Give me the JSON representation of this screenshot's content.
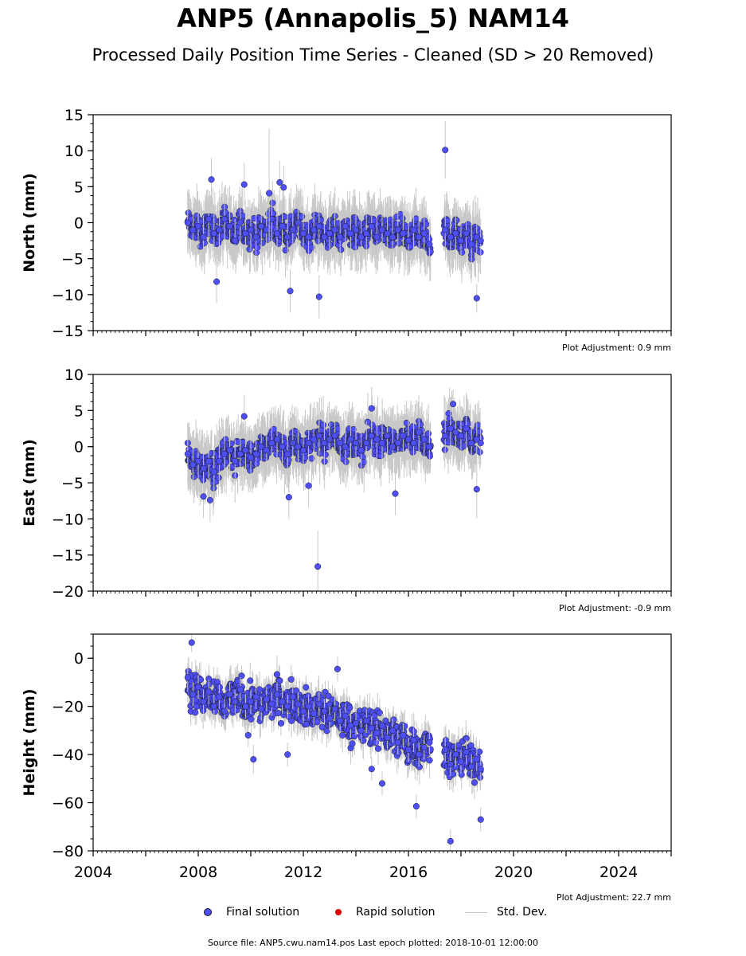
{
  "title": "ANP5 (Annapolis_5) NAM14",
  "subtitle": "Processed Daily Position Time Series - Cleaned (SD > 20 Removed)",
  "source_note": "Source file: ANP5.cwu.nam14.pos  Last epoch plotted: 2018-10-01 12:00:00",
  "legend": {
    "final": "Final solution",
    "rapid": "Rapid solution",
    "std": "Std. Dev."
  },
  "colors": {
    "final": "#4f4ff7",
    "rapid": "#e00000",
    "std": "#c8c8c8",
    "marker_edge": "#1a1a1a"
  },
  "chart_data": [
    {
      "type": "scatter",
      "ylabel": "North (mm)",
      "ylim": [
        -15,
        15
      ],
      "yticks": [
        -15,
        -10,
        -5,
        0,
        5,
        10,
        15
      ],
      "ytick_labels": [
        "−15",
        "−10",
        "−5",
        "0",
        "5",
        "10",
        "15"
      ],
      "xlim": [
        2004,
        2026
      ],
      "adjustment": "Plot Adjustment: 0.9 mm",
      "series": [
        {
          "style": "final",
          "x": [
            2007.6,
            2007.8,
            2008.0,
            2008.2,
            2008.4,
            2008.6,
            2008.8,
            2009.0,
            2009.2,
            2009.4,
            2009.6,
            2009.8,
            2010.0,
            2010.2,
            2010.4,
            2010.6,
            2010.8,
            2011.0,
            2011.2,
            2011.4,
            2011.6,
            2011.8,
            2012.0,
            2012.2,
            2012.4,
            2012.6,
            2012.8,
            2013.0,
            2013.2,
            2013.4,
            2013.6,
            2013.8,
            2014.0,
            2014.2,
            2014.4,
            2014.6,
            2014.8,
            2015.0,
            2015.2,
            2015.4,
            2015.6,
            2015.8,
            2016.0,
            2016.2,
            2016.4,
            2016.6,
            2016.8,
            2017.4,
            2017.6,
            2017.8,
            2018.0,
            2018.2,
            2018.4,
            2018.6,
            2018.75
          ],
          "y": [
            0.0,
            -1.0,
            -0.5,
            -2.0,
            0.5,
            -1.5,
            -1.0,
            0.5,
            -0.5,
            -2.5,
            0.0,
            -1.5,
            -1.0,
            -2.0,
            -0.5,
            -1.0,
            0.5,
            -1.5,
            -0.5,
            -2.0,
            -1.0,
            0.0,
            -1.5,
            -2.0,
            -1.0,
            -0.5,
            -2.0,
            -1.5,
            -1.0,
            -2.0,
            -0.5,
            -1.5,
            -1.0,
            -2.0,
            -1.5,
            -0.5,
            -2.0,
            -1.0,
            -1.5,
            -2.0,
            -1.0,
            -1.5,
            -2.5,
            -1.0,
            -2.0,
            -1.5,
            -3.0,
            -1.0,
            -2.0,
            -1.5,
            -2.5,
            -1.5,
            -3.0,
            -2.0,
            -2.5
          ],
          "err": [
            4,
            3,
            3,
            3,
            3,
            4,
            3,
            3,
            4,
            3,
            3,
            3,
            3,
            4,
            3,
            3,
            4,
            3,
            3,
            3,
            3,
            3,
            3,
            3,
            3,
            3,
            3,
            3,
            3,
            3,
            3,
            3,
            3,
            3,
            3,
            3,
            3,
            3,
            3,
            3,
            3,
            3,
            3,
            3,
            3,
            3,
            3,
            3,
            3,
            3,
            3,
            3,
            3,
            3,
            3
          ]
        },
        {
          "style": "final-outliers",
          "x": [
            2008.5,
            2009.75,
            2011.5,
            2011.1,
            2011.25,
            2012.6,
            2017.4,
            2018.6,
            2010.7,
            2008.7
          ],
          "y": [
            6.0,
            5.3,
            -9.5,
            5.6,
            4.9,
            -10.3,
            10.1,
            -10.5,
            4.1,
            -8.2
          ],
          "err": [
            3,
            3,
            3,
            3,
            3,
            3,
            4,
            2,
            9,
            3
          ]
        }
      ]
    },
    {
      "type": "scatter",
      "ylabel": "East (mm)",
      "ylim": [
        -20,
        10
      ],
      "yticks": [
        -20,
        -15,
        -10,
        -5,
        0,
        5,
        10
      ],
      "ytick_labels": [
        "−20",
        "−15",
        "−10",
        "−5",
        "0",
        "5",
        "10"
      ],
      "xlim": [
        2004,
        2026
      ],
      "adjustment": "Plot Adjustment: -0.9 mm",
      "series": [
        {
          "style": "final",
          "x": [
            2007.6,
            2007.8,
            2008.0,
            2008.2,
            2008.4,
            2008.6,
            2008.8,
            2009.0,
            2009.2,
            2009.4,
            2009.6,
            2009.8,
            2010.0,
            2010.2,
            2010.4,
            2010.6,
            2010.8,
            2011.0,
            2011.2,
            2011.4,
            2011.6,
            2011.8,
            2012.0,
            2012.2,
            2012.4,
            2012.6,
            2012.8,
            2013.0,
            2013.2,
            2013.4,
            2013.6,
            2013.8,
            2014.0,
            2014.2,
            2014.4,
            2014.6,
            2014.8,
            2015.0,
            2015.2,
            2015.4,
            2015.6,
            2015.8,
            2016.0,
            2016.2,
            2016.4,
            2016.6,
            2016.8,
            2017.4,
            2017.6,
            2017.8,
            2018.0,
            2018.2,
            2018.4,
            2018.6,
            2018.75
          ],
          "y": [
            -1.0,
            -2.5,
            -2.0,
            -3.0,
            -2.0,
            -3.5,
            -2.0,
            -1.0,
            -0.5,
            -2.0,
            -1.0,
            -0.5,
            -1.5,
            -1.0,
            0.0,
            -0.5,
            0.5,
            1.0,
            0.0,
            -1.0,
            0.5,
            0.0,
            -0.5,
            0.5,
            1.0,
            1.5,
            0.5,
            1.0,
            1.5,
            0.5,
            0.0,
            1.0,
            0.5,
            -0.5,
            0.5,
            1.5,
            1.0,
            0.5,
            1.5,
            0.0,
            0.5,
            1.5,
            1.0,
            0.5,
            2.0,
            1.0,
            0.0,
            1.5,
            2.5,
            2.0,
            1.5,
            2.5,
            0.5,
            1.0,
            0.5
          ],
          "err": [
            4,
            3,
            3,
            3,
            3,
            3,
            3,
            3,
            3,
            3,
            3,
            3,
            3,
            3,
            3,
            3,
            3,
            3,
            3,
            3,
            3,
            3,
            3,
            3,
            3,
            3,
            3,
            3,
            3,
            3,
            3,
            3,
            3,
            3,
            3,
            3,
            3,
            3,
            3,
            3,
            3,
            3,
            3,
            3,
            3,
            3,
            3,
            3,
            3,
            3,
            3,
            3,
            3,
            3,
            3
          ]
        },
        {
          "style": "final-outliers",
          "x": [
            2012.55,
            2011.45,
            2008.2,
            2008.45,
            2015.5,
            2012.2,
            2014.6,
            2018.6,
            2017.7,
            2009.75
          ],
          "y": [
            -16.6,
            -7.0,
            -6.9,
            -7.4,
            -6.5,
            -5.4,
            5.3,
            -5.9,
            5.9,
            4.2
          ],
          "err": [
            5,
            3,
            3,
            3,
            3,
            3,
            3,
            4,
            2,
            3
          ]
        }
      ]
    },
    {
      "type": "scatter",
      "ylabel": "Height (mm)",
      "ylim": [
        -80,
        10
      ],
      "yticks": [
        -80,
        -60,
        -40,
        -20,
        0
      ],
      "ytick_labels": [
        "−80",
        "−60",
        "−40",
        "−20",
        "0"
      ],
      "xlim": [
        2004,
        2026
      ],
      "xticks": [
        2004,
        2008,
        2012,
        2016,
        2020,
        2024
      ],
      "xtick_labels": [
        "2004",
        "2008",
        "2012",
        "2016",
        "2020",
        "2024"
      ],
      "adjustment": "Plot Adjustment: 22.7 mm",
      "series": [
        {
          "style": "final",
          "x": [
            2007.6,
            2007.8,
            2008.0,
            2008.2,
            2008.4,
            2008.6,
            2008.8,
            2009.0,
            2009.2,
            2009.4,
            2009.6,
            2009.8,
            2010.0,
            2010.2,
            2010.4,
            2010.6,
            2010.8,
            2011.0,
            2011.2,
            2011.4,
            2011.6,
            2011.8,
            2012.0,
            2012.2,
            2012.4,
            2012.6,
            2012.8,
            2013.0,
            2013.2,
            2013.4,
            2013.6,
            2013.8,
            2014.0,
            2014.2,
            2014.4,
            2014.6,
            2014.8,
            2015.0,
            2015.2,
            2015.4,
            2015.6,
            2015.8,
            2016.0,
            2016.2,
            2016.4,
            2016.6,
            2016.8,
            2017.4,
            2017.6,
            2017.8,
            2018.0,
            2018.2,
            2018.4,
            2018.6,
            2018.75
          ],
          "y": [
            -8,
            -15,
            -12,
            -18,
            -14,
            -20,
            -16,
            -22,
            -15,
            -18,
            -13,
            -20,
            -18,
            -16,
            -21,
            -17,
            -19,
            -15,
            -18,
            -20,
            -16,
            -19,
            -22,
            -20,
            -23,
            -19,
            -22,
            -25,
            -21,
            -26,
            -24,
            -28,
            -27,
            -30,
            -26,
            -29,
            -31,
            -28,
            -33,
            -30,
            -35,
            -32,
            -38,
            -34,
            -40,
            -37,
            -35,
            -38,
            -44,
            -40,
            -43,
            -39,
            -45,
            -42,
            -46
          ],
          "err": [
            6,
            5,
            5,
            5,
            5,
            5,
            5,
            5,
            5,
            5,
            5,
            5,
            5,
            5,
            5,
            5,
            5,
            5,
            5,
            5,
            5,
            5,
            5,
            5,
            5,
            5,
            5,
            5,
            5,
            5,
            5,
            5,
            5,
            5,
            5,
            5,
            5,
            5,
            5,
            5,
            5,
            5,
            5,
            5,
            5,
            5,
            5,
            5,
            5,
            5,
            5,
            5,
            5,
            5,
            5
          ]
        },
        {
          "style": "final-outliers",
          "x": [
            2007.75,
            2010.1,
            2017.6,
            2016.3,
            2018.75,
            2015.0,
            2011.4,
            2013.3,
            2009.9,
            2014.6
          ],
          "y": [
            6.5,
            -42.0,
            -76.0,
            -61.5,
            -67.0,
            -52.0,
            -40.0,
            -4.5,
            -32.0,
            -46.0
          ],
          "err": [
            4,
            6,
            5,
            5,
            5,
            5,
            5,
            5,
            5,
            5
          ]
        }
      ]
    }
  ]
}
